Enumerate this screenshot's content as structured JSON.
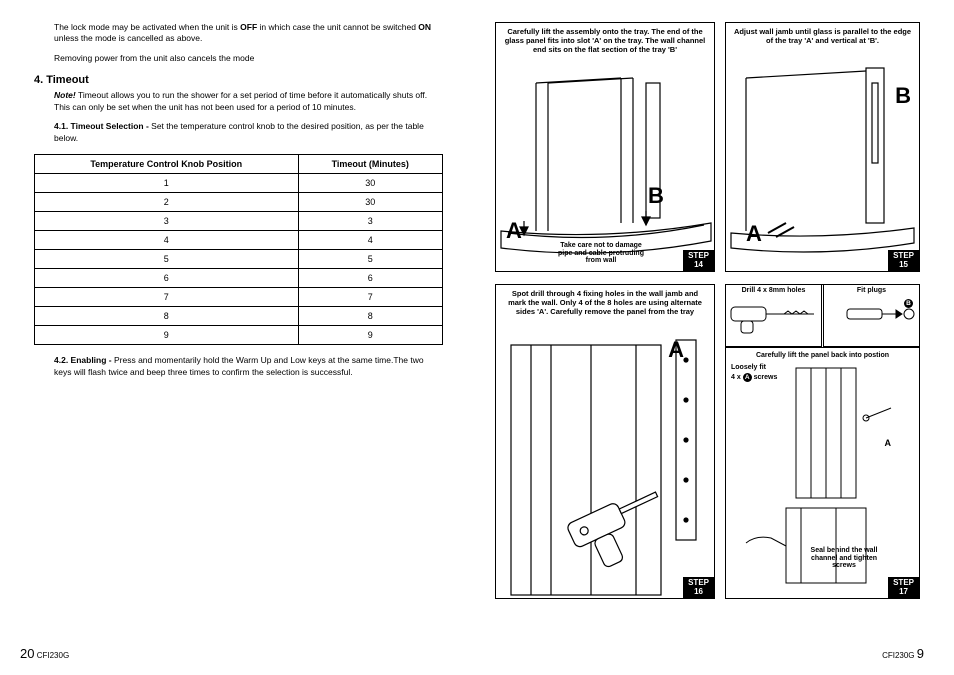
{
  "left": {
    "para1_a": "The lock mode may be activated when the unit is ",
    "para1_b": "OFF",
    "para1_c": " in which case the unit cannot be switched ",
    "para1_d": "ON",
    "para1_e": " unless the mode is cancelled as above.",
    "para2": "Removing power from the unit also cancels the mode",
    "section": "4. Timeout",
    "note_lead": "Note!",
    "note_body": " Timeout allows you to run the shower for a set period of time before it automatically shuts off. This can only be set when the unit has not been used for a period of 10 minutes.",
    "sel_lead": "4.1. Timeout Selection - ",
    "sel_body": "Set the temperature control knob to the desired position, as per the table below.",
    "table": {
      "head1": "Temperature Control Knob Position",
      "head2": "Timeout (Minutes)",
      "rows": [
        [
          "1",
          "30"
        ],
        [
          "2",
          "30"
        ],
        [
          "3",
          "3"
        ],
        [
          "4",
          "4"
        ],
        [
          "5",
          "5"
        ],
        [
          "6",
          "6"
        ],
        [
          "7",
          "7"
        ],
        [
          "8",
          "8"
        ],
        [
          "9",
          "9"
        ]
      ]
    },
    "enable_lead": "4.2. Enabling - ",
    "enable_body": "Press and momentarily hold the Warm Up and Low keys at the same time.The two keys will flash twice and beep three times to confirm the selection is successful.",
    "pgnum": "20",
    "doccode": "CFI230G"
  },
  "right": {
    "step14": {
      "caption": "Carefully lift the assembly onto the tray. The end of the glass panel fits into slot 'A' on the tray. The wall channel end sits on the flat section of the tray 'B'",
      "warn": "Take care not to damage pipe and cable protruding from wall",
      "labelA": "A",
      "labelB": "B",
      "badge_top": "STEP",
      "badge_num": "14"
    },
    "step15": {
      "caption": "Adjust wall jamb until glass is parallel to the edge of the tray 'A' and vertical at 'B'.",
      "labelA": "A",
      "labelB": "B",
      "badge_top": "STEP",
      "badge_num": "15"
    },
    "step16": {
      "caption": "Spot drill through 4 fixing holes in the wall jamb and mark the wall. Only 4 of the 8 holes are using alternate sides 'A'. Carefully remove the panel from the tray",
      "labelA": "A",
      "badge_top": "STEP",
      "badge_num": "16"
    },
    "step17": {
      "drill": "Drill 4 x 8mm holes",
      "plugs": "Fit plugs",
      "circB": "B",
      "lift": "Carefully lift the panel back into postion",
      "loose_a": "Loosely fit",
      "loose_b": "4 x ",
      "circA": "A",
      "loose_c": " screws",
      "labA": "A",
      "seal": "Seal behind the wall channel and tighten screws",
      "badge_top": "STEP",
      "badge_num": "17"
    },
    "doccode": "CFI230G",
    "pgnum": "9"
  }
}
